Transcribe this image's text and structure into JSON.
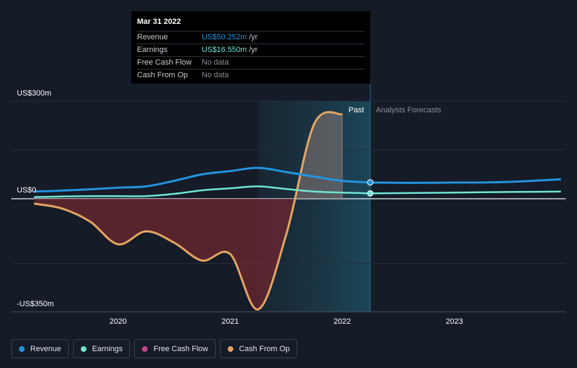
{
  "tooltip": {
    "date": "Mar 31 2022",
    "rows": [
      {
        "label": "Revenue",
        "value": "US$50.252m",
        "unit": "/yr",
        "color": "#2394df"
      },
      {
        "label": "Earnings",
        "value": "US$16.550m",
        "unit": "/yr",
        "color": "#6ee7d4"
      },
      {
        "label": "Free Cash Flow",
        "value": "No data",
        "unit": "",
        "color": "#8a8f98"
      },
      {
        "label": "Cash From Op",
        "value": "No data",
        "unit": "",
        "color": "#8a8f98"
      }
    ]
  },
  "legend": [
    {
      "label": "Revenue",
      "color": "#2394df"
    },
    {
      "label": "Earnings",
      "color": "#6ee7d4"
    },
    {
      "label": "Free Cash Flow",
      "color": "#c0498a"
    },
    {
      "label": "Cash From Op",
      "color": "#e4a561"
    }
  ],
  "chart_data": {
    "type": "line",
    "title": "",
    "xlabel": "",
    "ylabel": "",
    "y_labels": {
      "top": "US$300m",
      "zero": "US$0",
      "bottom": "-US$350m"
    },
    "ylim": [
      -350,
      300
    ],
    "xlim": [
      2019.25,
      2023.95
    ],
    "x_ticks": [
      2020,
      2021,
      2022,
      2023
    ],
    "x_tick_labels": [
      "2020",
      "2021",
      "2022",
      "2023"
    ],
    "past_label": "Past",
    "forecast_label": "Analysts Forecasts",
    "past_region": [
      2021.25,
      2022.25
    ],
    "forecast_start": 2022.25,
    "series": [
      {
        "name": "Revenue",
        "color": "#2394df",
        "x": [
          2019.25,
          2019.5,
          2019.75,
          2020.0,
          2020.25,
          2020.5,
          2020.75,
          2021.0,
          2021.25,
          2021.5,
          2021.75,
          2022.0,
          2022.25
        ],
        "y": [
          22,
          25,
          29,
          34,
          38,
          55,
          75,
          85,
          95,
          82,
          68,
          55,
          50
        ]
      },
      {
        "name": "Revenue forecast",
        "color": "#2394df",
        "x": [
          2022.25,
          2022.5,
          2022.75,
          2023.0,
          2023.25,
          2023.5,
          2023.75,
          2023.95
        ],
        "y": [
          50,
          49,
          49,
          50,
          50,
          52,
          56,
          60
        ]
      },
      {
        "name": "Earnings",
        "color": "#6ee7d4",
        "x": [
          2019.25,
          2019.5,
          2019.75,
          2020.0,
          2020.25,
          2020.5,
          2020.75,
          2021.0,
          2021.25,
          2021.5,
          2021.75,
          2022.0,
          2022.25
        ],
        "y": [
          5,
          7,
          8,
          8,
          8,
          15,
          26,
          32,
          38,
          30,
          22,
          19,
          16.55
        ]
      },
      {
        "name": "Earnings forecast",
        "color": "#6ee7d4",
        "x": [
          2022.25,
          2022.75,
          2023.25,
          2023.95
        ],
        "y": [
          16.55,
          18,
          20,
          22
        ]
      },
      {
        "name": "Cash From Op",
        "color": "#e4a561",
        "x": [
          2019.25,
          2019.5,
          2019.75,
          2020.0,
          2020.25,
          2020.5,
          2020.75,
          2021.0,
          2021.25,
          2021.5,
          2021.75,
          2022.0
        ],
        "y": [
          -15,
          -30,
          -70,
          -140,
          -100,
          -135,
          -190,
          -170,
          -340,
          -110,
          230,
          260
        ]
      }
    ],
    "highlight_points": [
      {
        "series": "Revenue",
        "x": 2022.25,
        "y": 50.252
      },
      {
        "series": "Earnings",
        "x": 2022.25,
        "y": 16.55
      }
    ]
  }
}
